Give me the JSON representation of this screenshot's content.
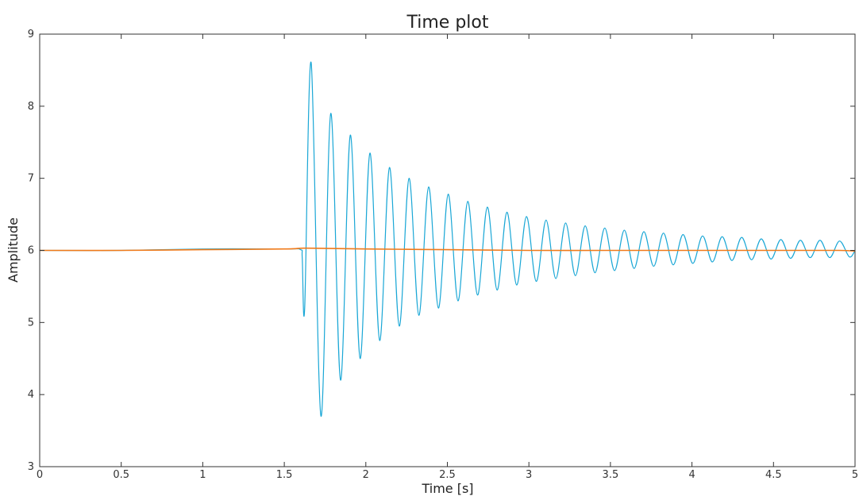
{
  "chart_data": {
    "type": "line",
    "title": "Time plot",
    "xlabel": "Time [s]",
    "ylabel": "Amplitude",
    "xlim": [
      0,
      5
    ],
    "ylim": [
      3,
      9
    ],
    "xticks": [
      0,
      0.5,
      1,
      1.5,
      2,
      2.5,
      3,
      3.5,
      4,
      4.5,
      5
    ],
    "xtick_labels": [
      "0",
      "0.5",
      "1",
      "1.5",
      "2",
      "2.5",
      "3",
      "3.5",
      "4",
      "4.5",
      "5"
    ],
    "yticks": [
      3,
      4,
      5,
      6,
      7,
      8,
      9
    ],
    "ytick_labels": [
      "3",
      "4",
      "5",
      "6",
      "7",
      "8",
      "9"
    ],
    "grid": false,
    "series": [
      {
        "color": "#1aa7d6",
        "x": [
          0,
          0.5,
          1.0,
          1.5,
          1.6,
          1.61,
          1.625,
          1.665,
          1.725,
          1.785,
          1.845,
          1.905,
          1.965,
          2.025,
          2.085,
          2.145,
          2.205,
          2.265,
          2.325,
          2.385,
          2.445,
          2.505,
          2.565,
          2.625,
          2.685,
          2.745,
          2.805,
          2.865,
          2.925,
          2.985,
          3.045,
          3.105,
          3.165,
          3.225,
          3.285,
          3.345,
          3.405,
          3.465,
          3.525,
          3.585,
          3.645,
          3.705,
          3.765,
          3.825,
          3.885,
          3.945,
          4.005,
          4.065,
          4.125,
          4.185,
          4.245,
          4.305,
          4.365,
          4.425,
          4.485,
          4.545,
          4.605,
          4.665,
          4.725,
          4.785,
          4.845,
          4.905,
          4.965,
          5.0
        ],
        "y": [
          6.0,
          6.0,
          6.02,
          6.02,
          6.01,
          5.9,
          5.2,
          8.6,
          3.7,
          7.9,
          4.2,
          7.6,
          4.5,
          7.35,
          4.75,
          7.15,
          4.95,
          7.0,
          5.1,
          6.88,
          5.2,
          6.78,
          5.3,
          6.68,
          5.38,
          6.6,
          5.45,
          6.53,
          5.52,
          6.47,
          5.57,
          6.42,
          5.61,
          6.38,
          5.65,
          6.34,
          5.69,
          6.31,
          5.72,
          6.28,
          5.75,
          6.26,
          5.78,
          6.24,
          5.8,
          6.22,
          5.82,
          6.2,
          5.84,
          6.19,
          5.86,
          6.18,
          5.87,
          6.16,
          5.88,
          6.15,
          5.89,
          6.14,
          5.9,
          6.14,
          5.9,
          6.13,
          5.91,
          6.0
        ]
      },
      {
        "color": "#f07a1a",
        "x": [
          0,
          0.5,
          1.0,
          1.5,
          1.6,
          1.7,
          2.0,
          2.5,
          3.0,
          3.5,
          4.0,
          4.5,
          4.9,
          5.0
        ],
        "y": [
          6.0,
          6.0,
          6.01,
          6.02,
          6.03,
          6.03,
          6.02,
          6.01,
          6.0,
          6.0,
          6.0,
          6.0,
          6.0,
          5.99
        ]
      }
    ]
  }
}
